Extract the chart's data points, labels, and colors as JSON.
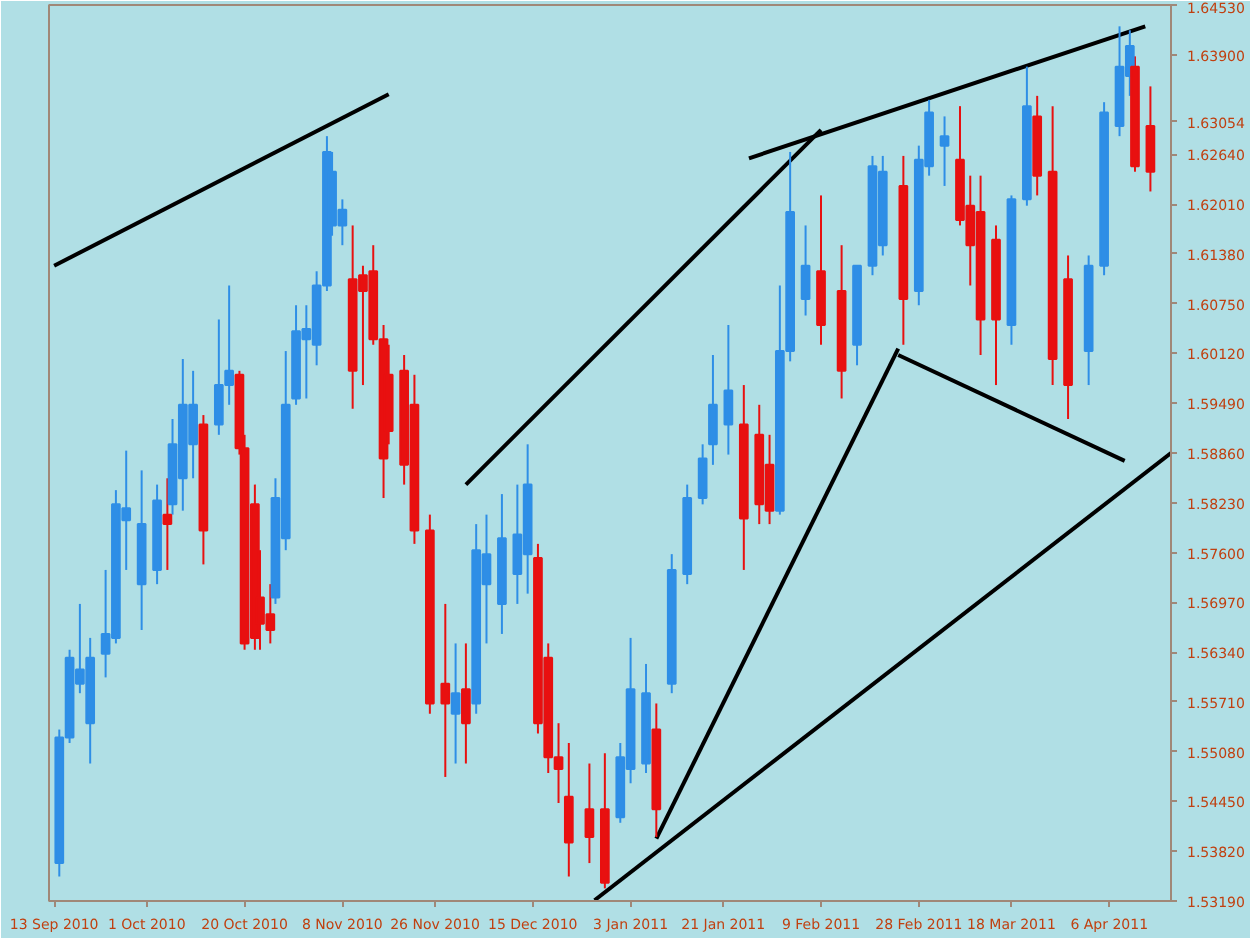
{
  "chart_data": {
    "type": "candlestick",
    "x": [
      "2010-09-14",
      "2010-09-16",
      "2010-09-18",
      "2010-09-20",
      "2010-09-23",
      "2010-09-25",
      "2010-09-27",
      "2010-09-30",
      "2010-10-03",
      "2010-10-05",
      "2010-10-06",
      "2010-10-08",
      "2010-10-10",
      "2010-10-12",
      "2010-10-15",
      "2010-10-17",
      "2010-10-19",
      "2010-10-20",
      "2010-10-22",
      "2010-10-23",
      "2010-10-25",
      "2010-10-26",
      "2010-10-28",
      "2010-10-30",
      "2010-11-01",
      "2010-11-03",
      "2010-11-05",
      "2010-11-06",
      "2010-11-08",
      "2010-11-10",
      "2010-11-12",
      "2010-11-14",
      "2010-11-16",
      "2010-11-17",
      "2010-11-20",
      "2010-11-22",
      "2010-11-25",
      "2010-11-28",
      "2010-11-30",
      "2010-12-02",
      "2010-12-04",
      "2010-12-06",
      "2010-12-09",
      "2010-12-12",
      "2010-12-14",
      "2010-12-16",
      "2010-12-18",
      "2010-12-20",
      "2010-12-22",
      "2010-12-26",
      "2010-12-29",
      "2011-01-01",
      "2011-01-03",
      "2011-01-06",
      "2011-01-08",
      "2011-01-11",
      "2011-01-14",
      "2011-01-17",
      "2011-01-19",
      "2011-01-22",
      "2011-01-25",
      "2011-01-28",
      "2011-01-30",
      "2011-02-01",
      "2011-02-03",
      "2011-02-06",
      "2011-02-09",
      "2011-02-13",
      "2011-02-16",
      "2011-02-19",
      "2011-02-21",
      "2011-02-25",
      "2011-02-28",
      "2011-03-02",
      "2011-03-05",
      "2011-03-08",
      "2011-03-10",
      "2011-03-12",
      "2011-03-15",
      "2011-03-18",
      "2011-03-21",
      "2011-03-23",
      "2011-03-26",
      "2011-03-29",
      "2011-04-02",
      "2011-04-05",
      "2011-04-08",
      "2011-04-10",
      "2011-04-11",
      "2011-04-14"
    ],
    "ohlc": [
      [
        1.5367,
        1.5536,
        1.535,
        1.5526
      ],
      [
        1.5526,
        1.5637,
        1.5519,
        1.5627
      ],
      [
        1.5594,
        1.5695,
        1.5582,
        1.5612
      ],
      [
        1.5544,
        1.5652,
        1.5493,
        1.5627
      ],
      [
        1.5632,
        1.5738,
        1.5602,
        1.5657
      ],
      [
        1.5652,
        1.5839,
        1.5645,
        1.5821
      ],
      [
        1.5801,
        1.5889,
        1.5738,
        1.5816
      ],
      [
        1.572,
        1.5864,
        1.5662,
        1.5796
      ],
      [
        1.5738,
        1.5846,
        1.572,
        1.5826
      ],
      [
        1.5808,
        1.5854,
        1.5738,
        1.5796
      ],
      [
        1.5821,
        1.5929,
        1.5808,
        1.5897
      ],
      [
        1.5854,
        1.6005,
        1.5813,
        1.5947
      ],
      [
        1.5897,
        1.599,
        1.5854,
        1.5947
      ],
      [
        1.5922,
        1.5934,
        1.5745,
        1.5788
      ],
      [
        1.5922,
        1.6055,
        1.5909,
        1.5972
      ],
      [
        1.5972,
        1.6098,
        1.5947,
        1.599
      ],
      [
        1.5985,
        1.599,
        1.5884,
        1.5892
      ],
      [
        1.5892,
        1.5909,
        1.5637,
        1.5645
      ],
      [
        1.5821,
        1.5846,
        1.5637,
        1.5652
      ],
      [
        1.5703,
        1.5763,
        1.5637,
        1.567
      ],
      [
        1.5682,
        1.572,
        1.5645,
        1.5662
      ],
      [
        1.5703,
        1.5854,
        1.5695,
        1.5829
      ],
      [
        1.5778,
        1.6015,
        1.5763,
        1.5947
      ],
      [
        1.5955,
        1.6073,
        1.5947,
        1.604
      ],
      [
        1.603,
        1.6073,
        1.5955,
        1.6043
      ],
      [
        1.6023,
        1.6116,
        1.5997,
        1.6098
      ],
      [
        1.6098,
        1.6287,
        1.6091,
        1.6267
      ],
      [
        1.6174,
        1.6267,
        1.6161,
        1.6242
      ],
      [
        1.6174,
        1.6207,
        1.6149,
        1.6194
      ],
      [
        1.6106,
        1.6174,
        1.5942,
        1.599
      ],
      [
        1.6111,
        1.6123,
        1.5972,
        1.6091
      ],
      [
        1.6116,
        1.6149,
        1.6023,
        1.603
      ],
      [
        1.603,
        1.6048,
        1.5829,
        1.5879
      ],
      [
        1.5985,
        1.6023,
        1.5897,
        1.5914
      ],
      [
        1.599,
        1.601,
        1.5846,
        1.5871
      ],
      [
        1.5947,
        1.5985,
        1.5771,
        1.5788
      ],
      [
        1.5788,
        1.5808,
        1.5556,
        1.5569
      ],
      [
        1.5594,
        1.5695,
        1.5476,
        1.5569
      ],
      [
        1.5556,
        1.5645,
        1.5493,
        1.5582
      ],
      [
        1.5587,
        1.5645,
        1.5493,
        1.5544
      ],
      [
        1.5569,
        1.5796,
        1.5556,
        1.5763
      ],
      [
        1.572,
        1.5808,
        1.5645,
        1.5758
      ],
      [
        1.5695,
        1.5834,
        1.5657,
        1.5778
      ],
      [
        1.5733,
        1.5846,
        1.5695,
        1.5783
      ],
      [
        1.5758,
        1.5897,
        1.5708,
        1.5846
      ],
      [
        1.5753,
        1.5771,
        1.5531,
        1.5544
      ],
      [
        1.5627,
        1.5645,
        1.5481,
        1.5501
      ],
      [
        1.5501,
        1.5544,
        1.5443,
        1.5486
      ],
      [
        1.5451,
        1.5519,
        1.535,
        1.5393
      ],
      [
        1.5435,
        1.5493,
        1.5367,
        1.54
      ],
      [
        1.5435,
        1.5506,
        1.5335,
        1.5342
      ],
      [
        1.5425,
        1.5519,
        1.5418,
        1.5501
      ],
      [
        1.5486,
        1.5652,
        1.5468,
        1.5587
      ],
      [
        1.5493,
        1.5619,
        1.5481,
        1.5582
      ],
      [
        1.5536,
        1.5569,
        1.54,
        1.5435
      ],
      [
        1.5594,
        1.5758,
        1.5582,
        1.5738
      ],
      [
        1.5733,
        1.5846,
        1.572,
        1.5829
      ],
      [
        1.5829,
        1.5897,
        1.5821,
        1.5879
      ],
      [
        1.5897,
        1.601,
        1.5871,
        1.5947
      ],
      [
        1.5922,
        1.6048,
        1.5884,
        1.5965
      ],
      [
        1.5922,
        1.5972,
        1.5738,
        1.5803
      ],
      [
        1.5909,
        1.5947,
        1.5796,
        1.5821
      ],
      [
        1.5871,
        1.5909,
        1.5796,
        1.5813
      ],
      [
        1.5813,
        1.6098,
        1.5808,
        1.6015
      ],
      [
        1.6015,
        1.6267,
        1.6002,
        1.6191
      ],
      [
        1.6081,
        1.6174,
        1.606,
        1.6123
      ],
      [
        1.6116,
        1.6212,
        1.6023,
        1.6048
      ],
      [
        1.6091,
        1.6149,
        1.5955,
        1.599
      ],
      [
        1.6023,
        1.6123,
        1.5997,
        1.6123
      ],
      [
        1.6123,
        1.6262,
        1.6111,
        1.6249
      ],
      [
        1.6149,
        1.6262,
        1.6136,
        1.6242
      ],
      [
        1.6224,
        1.6262,
        1.6023,
        1.6081
      ],
      [
        1.6091,
        1.6275,
        1.6073,
        1.6257
      ],
      [
        1.6249,
        1.6333,
        1.6237,
        1.6317
      ],
      [
        1.6275,
        1.6312,
        1.6224,
        1.6287
      ],
      [
        1.6257,
        1.6325,
        1.6174,
        1.6181
      ],
      [
        1.6199,
        1.6237,
        1.6098,
        1.6149
      ],
      [
        1.6191,
        1.6237,
        1.601,
        1.6055
      ],
      [
        1.6156,
        1.6174,
        1.5972,
        1.6055
      ],
      [
        1.6048,
        1.6212,
        1.6023,
        1.6207
      ],
      [
        1.6207,
        1.6375,
        1.6199,
        1.6325
      ],
      [
        1.6312,
        1.6338,
        1.6212,
        1.6237
      ],
      [
        1.6242,
        1.6325,
        1.5972,
        1.6005
      ],
      [
        1.6106,
        1.6136,
        1.5929,
        1.5972
      ],
      [
        1.6015,
        1.6136,
        1.5972,
        1.6123
      ],
      [
        1.6123,
        1.633,
        1.6111,
        1.6317
      ],
      [
        1.63,
        1.6426,
        1.6287,
        1.6375
      ],
      [
        1.6363,
        1.6421,
        1.6338,
        1.6401
      ],
      [
        1.6375,
        1.6388,
        1.6242,
        1.6249
      ],
      [
        1.63,
        1.635,
        1.6217,
        1.6242
      ]
    ],
    "colors": [
      "#2e8ee6",
      "#2e8ee6",
      "#2e8ee6",
      "#2e8ee6",
      "#2e8ee6",
      "#2e8ee6",
      "#2e8ee6",
      "#2e8ee6",
      "#2e8ee6",
      "#e81010",
      "#2e8ee6",
      "#2e8ee6",
      "#2e8ee6",
      "#e81010",
      "#2e8ee6",
      "#2e8ee6",
      "#e81010",
      "#e81010",
      "#e81010",
      "#e81010",
      "#e81010",
      "#2e8ee6",
      "#2e8ee6",
      "#2e8ee6",
      "#2e8ee6",
      "#2e8ee6",
      "#2e8ee6",
      "#2e8ee6",
      "#2e8ee6",
      "#e81010",
      "#e81010",
      "#e81010",
      "#e81010",
      "#e81010",
      "#e81010",
      "#e81010",
      "#e81010",
      "#e81010",
      "#2e8ee6",
      "#e81010",
      "#2e8ee6",
      "#2e8ee6",
      "#2e8ee6",
      "#2e8ee6",
      "#2e8ee6",
      "#e81010",
      "#e81010",
      "#e81010",
      "#e81010",
      "#e81010",
      "#e81010",
      "#2e8ee6",
      "#2e8ee6",
      "#2e8ee6",
      "#e81010",
      "#2e8ee6",
      "#2e8ee6",
      "#2e8ee6",
      "#2e8ee6",
      "#2e8ee6",
      "#e81010",
      "#e81010",
      "#e81010",
      "#2e8ee6",
      "#2e8ee6",
      "#2e8ee6",
      "#e81010",
      "#e81010",
      "#2e8ee6",
      "#2e8ee6",
      "#2e8ee6",
      "#e81010",
      "#2e8ee6",
      "#2e8ee6",
      "#2e8ee6",
      "#e81010",
      "#e81010",
      "#e81010",
      "#e81010",
      "#2e8ee6",
      "#2e8ee6",
      "#e81010",
      "#e81010",
      "#e81010",
      "#2e8ee6",
      "#2e8ee6",
      "#2e8ee6",
      "#2e8ee6",
      "#e81010",
      "#e81010"
    ],
    "series": [
      {
        "type": "line",
        "color": "#000000",
        "x": [
          "2010-09-13",
          "2010-11-17"
        ],
        "values": [
          1.6123,
          1.634
        ]
      },
      {
        "type": "line",
        "color": "#000000",
        "x": [
          "2010-12-02",
          "2011-02-09"
        ],
        "values": [
          1.5846,
          1.6295
        ]
      },
      {
        "type": "line",
        "color": "#000000",
        "x": [
          "2011-01-26",
          "2011-04-13"
        ],
        "values": [
          1.6259,
          1.6426
        ]
      },
      {
        "type": "line",
        "color": "#000000",
        "x": [
          "2011-01-08",
          "2011-02-24"
        ],
        "values": [
          1.5398,
          1.6018
        ]
      },
      {
        "type": "line",
        "color": "#000000",
        "x": [
          "2011-02-24",
          "2011-04-09"
        ],
        "values": [
          1.601,
          1.5876
        ]
      },
      {
        "type": "line",
        "color": "#000000",
        "x": [
          "2010-12-27",
          "2011-04-18"
        ],
        "values": [
          1.532,
          1.5886
        ]
      }
    ],
    "xlim": [
      "2010-09-12",
      "2011-04-18"
    ],
    "xticks": [
      {
        "value": "2010-09-13",
        "label": "13 Sep 2010"
      },
      {
        "value": "2010-10-01",
        "label": "1 Oct 2010"
      },
      {
        "value": "2010-10-20",
        "label": "20 Oct 2010"
      },
      {
        "value": "2010-11-08",
        "label": "8 Nov 2010"
      },
      {
        "value": "2010-11-26",
        "label": "26 Nov 2010"
      },
      {
        "value": "2010-12-15",
        "label": "15 Dec 2010"
      },
      {
        "value": "2011-01-03",
        "label": "3 Jan 2011"
      },
      {
        "value": "2011-01-21",
        "label": "21 Jan 2011"
      },
      {
        "value": "2011-02-09",
        "label": "9 Feb 2011"
      },
      {
        "value": "2011-02-28",
        "label": "28 Feb 2011"
      },
      {
        "value": "2011-03-18",
        "label": "18 Mar 2011"
      },
      {
        "value": "2011-04-06",
        "label": "6 Apr 2011"
      }
    ],
    "ylim": [
      1.5319,
      1.6453
    ],
    "yticks": [
      {
        "value": 1.5319,
        "label": "1.53190"
      },
      {
        "value": 1.5382,
        "label": "1.53820"
      },
      {
        "value": 1.5445,
        "label": "1.54450"
      },
      {
        "value": 1.5508,
        "label": "1.55080"
      },
      {
        "value": 1.5571,
        "label": "1.55710"
      },
      {
        "value": 1.5634,
        "label": "1.56340"
      },
      {
        "value": 1.5697,
        "label": "1.56970"
      },
      {
        "value": 1.576,
        "label": "1.57600"
      },
      {
        "value": 1.5823,
        "label": "1.58230"
      },
      {
        "value": 1.5886,
        "label": "1.58860"
      },
      {
        "value": 1.5949,
        "label": "1.59490"
      },
      {
        "value": 1.6012,
        "label": "1.60120"
      },
      {
        "value": 1.6075,
        "label": "1.60750"
      },
      {
        "value": 1.6138,
        "label": "1.61380"
      },
      {
        "value": 1.6201,
        "label": "1.62010"
      },
      {
        "value": 1.6264,
        "label": "1.62640"
      },
      {
        "value": 1.63054,
        "label": "1.63054"
      },
      {
        "value": 1.639,
        "label": "1.63900"
      },
      {
        "value": 1.6453,
        "label": "1.64530"
      }
    ],
    "grid": false
  }
}
